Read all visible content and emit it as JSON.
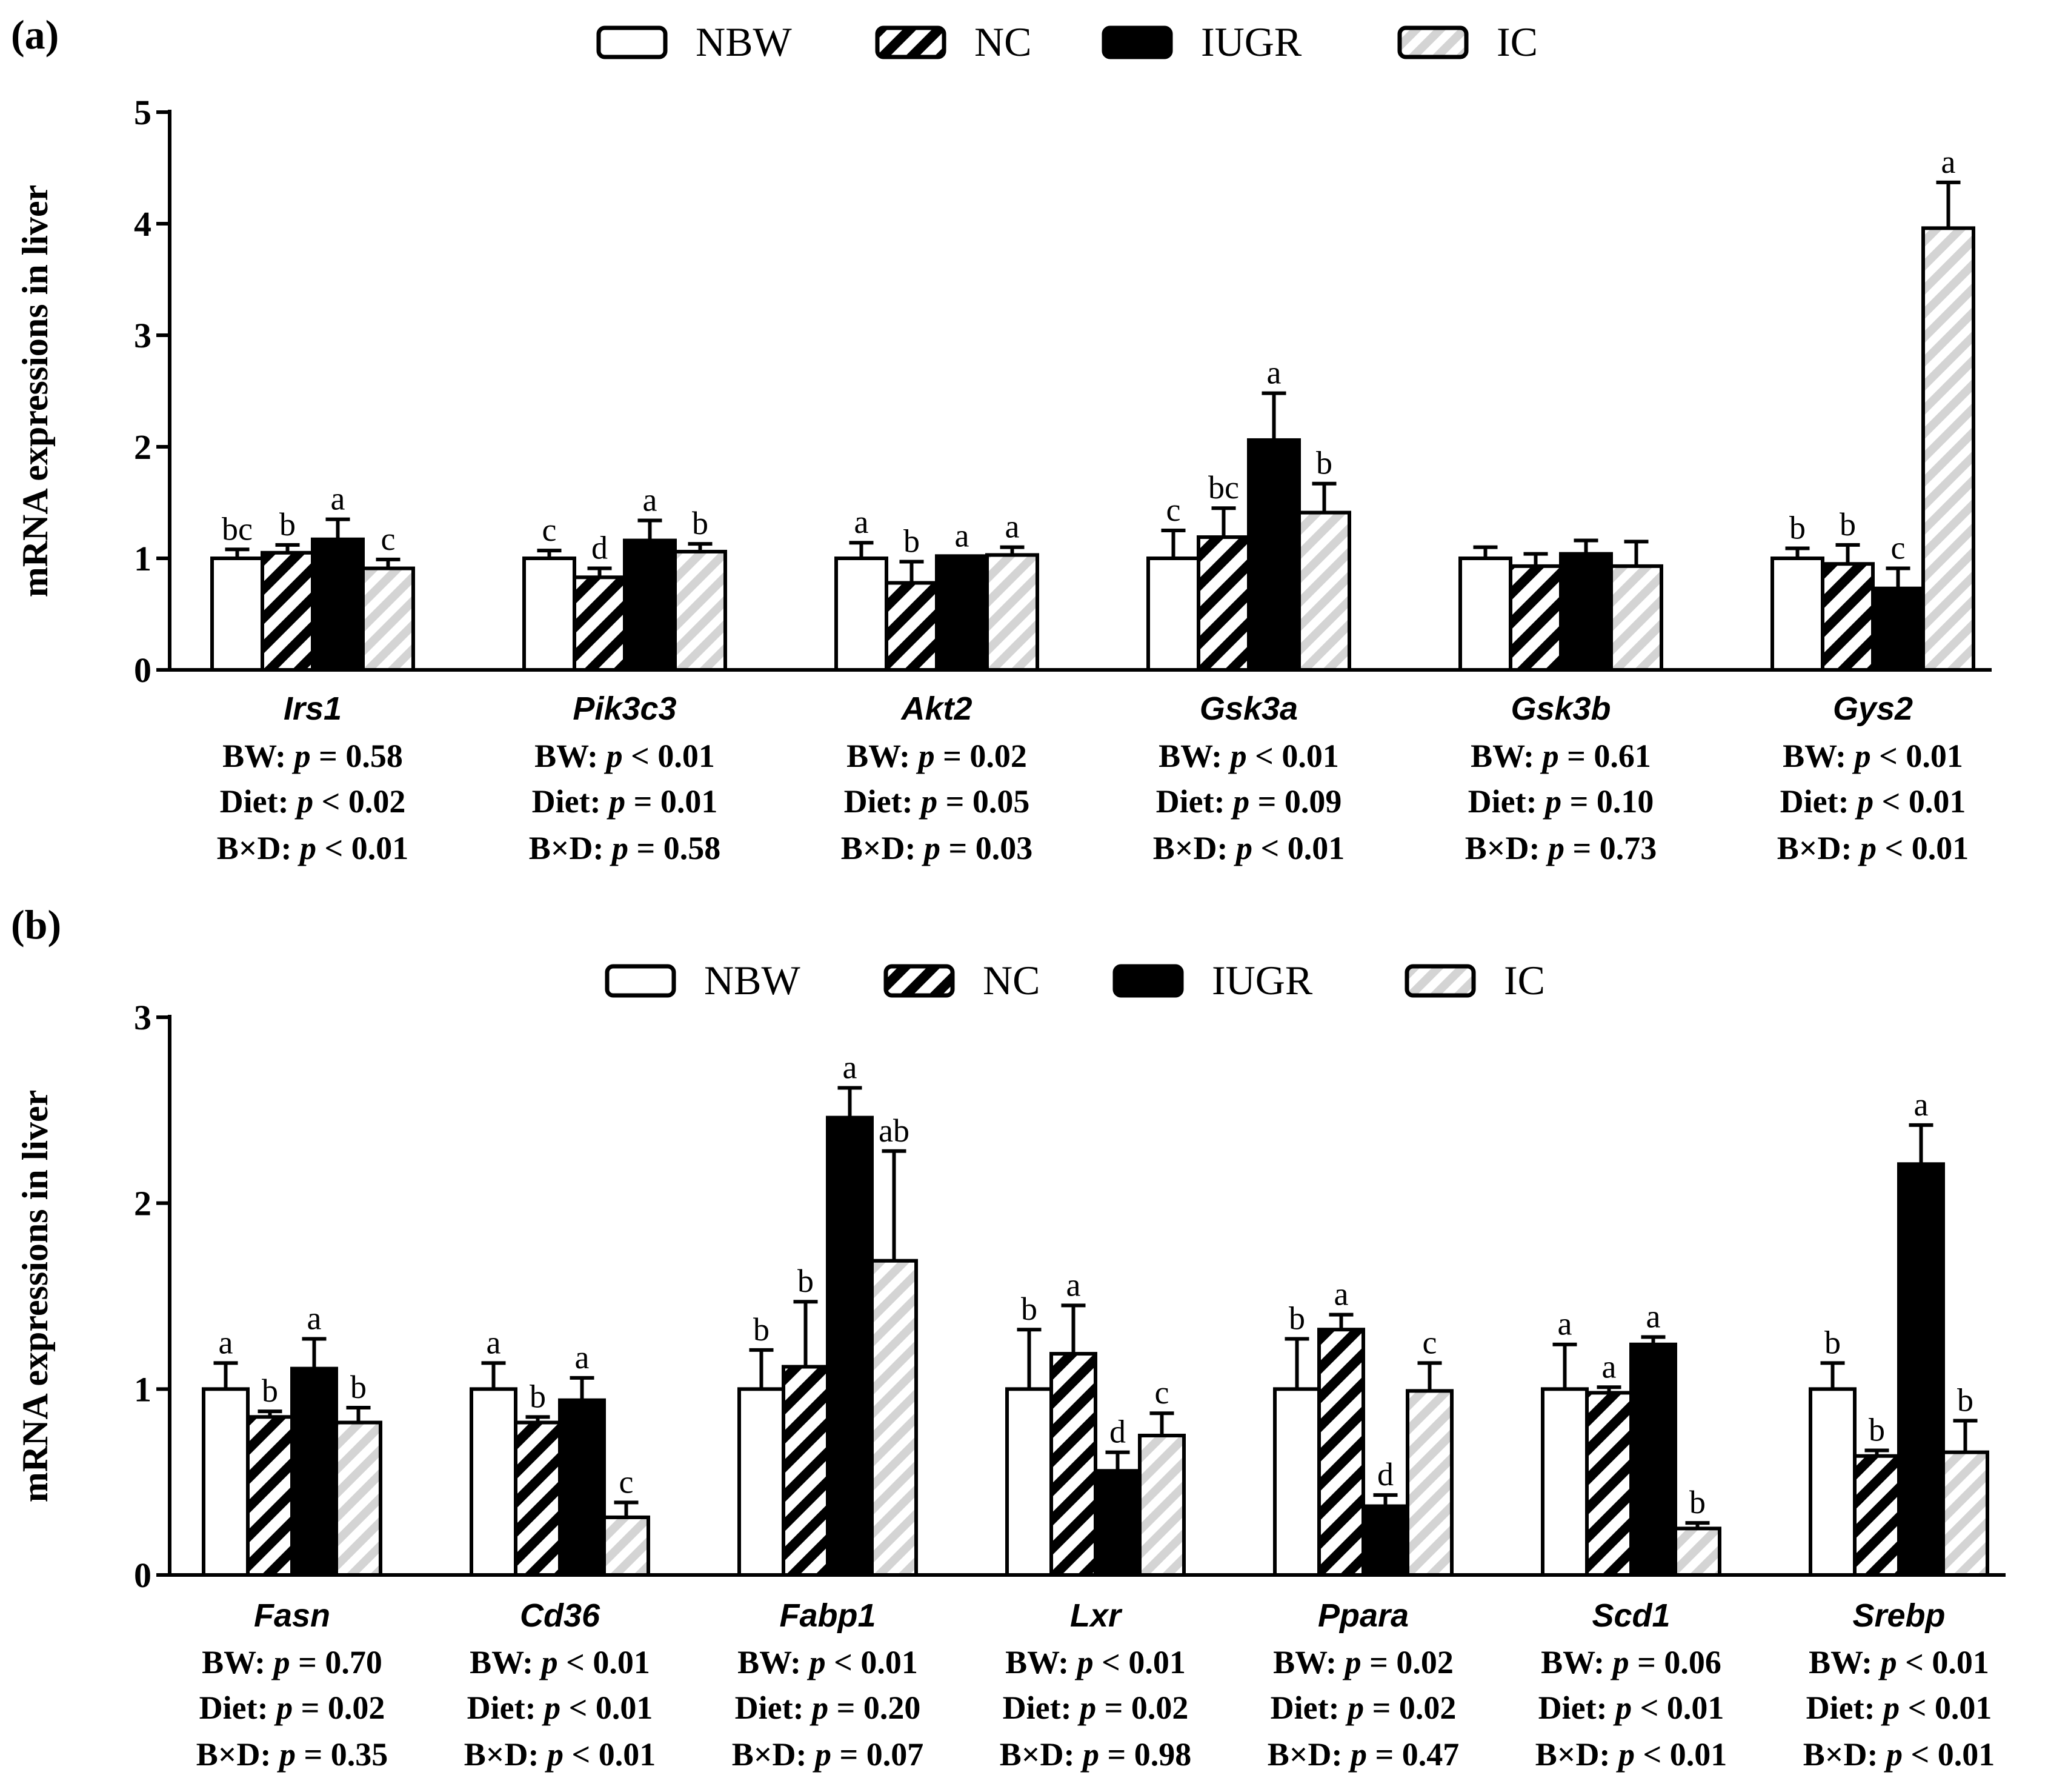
{
  "group_colors": {
    "NBW": "#ffffff",
    "NC": "#000000",
    "IUGR": "#000000",
    "IC": "#d9d9d9"
  },
  "chart_data": [
    {
      "type": "bar",
      "panel": "(a)",
      "ylabel": "mRNA expressions in liver",
      "ylim": [
        0,
        5
      ],
      "yticks": [
        "0",
        "1",
        "2",
        "3",
        "4",
        "5"
      ],
      "legend": [
        {
          "name": "NBW",
          "pattern": "white"
        },
        {
          "name": "NC",
          "pattern": "black-hatch"
        },
        {
          "name": "IUGR",
          "pattern": "black"
        },
        {
          "name": "IC",
          "pattern": "gray-hatch"
        }
      ],
      "genes": [
        {
          "name": "Irs1",
          "values": [
            1.0,
            1.05,
            1.17,
            0.91
          ],
          "errors": [
            0.08,
            0.07,
            0.18,
            0.08
          ],
          "letters": [
            "bc",
            "b",
            "a",
            "c"
          ],
          "stats": [
            "BW: p = 0.58",
            "Diet: p < 0.02",
            "B×D: p < 0.01"
          ]
        },
        {
          "name": "Pik3c3",
          "values": [
            1.0,
            0.83,
            1.16,
            1.06
          ],
          "errors": [
            0.07,
            0.08,
            0.18,
            0.07
          ],
          "letters": [
            "c",
            "d",
            "a",
            "b"
          ],
          "stats": [
            "BW: p < 0.01",
            "Diet: p = 0.01",
            "B×D: p = 0.58"
          ]
        },
        {
          "name": "Akt2",
          "values": [
            1.0,
            0.78,
            1.02,
            1.03
          ],
          "errors": [
            0.14,
            0.19,
            0.0,
            0.07
          ],
          "letters": [
            "a",
            "b",
            "a",
            "a"
          ],
          "stats": [
            "BW: p = 0.02",
            "Diet: p = 0.05",
            "B×D: p = 0.03"
          ]
        },
        {
          "name": "Gsk3a",
          "values": [
            1.0,
            1.19,
            2.06,
            1.41
          ],
          "errors": [
            0.25,
            0.26,
            0.42,
            0.26
          ],
          "letters": [
            "c",
            "bc",
            "a",
            "b"
          ],
          "stats": [
            "BW: p < 0.01",
            "Diet: p = 0.09",
            "B×D: p < 0.01"
          ]
        },
        {
          "name": "Gsk3b",
          "values": [
            1.0,
            0.93,
            1.04,
            0.93
          ],
          "errors": [
            0.1,
            0.11,
            0.12,
            0.22
          ],
          "letters": [
            "",
            "",
            "",
            ""
          ],
          "stats": [
            "BW: p = 0.61",
            "Diet: p = 0.10",
            "B×D: p = 0.73"
          ]
        },
        {
          "name": "Gys2",
          "values": [
            1.0,
            0.95,
            0.73,
            3.96
          ],
          "errors": [
            0.09,
            0.17,
            0.18,
            0.41
          ],
          "letters": [
            "b",
            "b",
            "c",
            "a"
          ],
          "stats": [
            "BW: p < 0.01",
            "Diet: p < 0.01",
            "B×D: p < 0.01"
          ]
        }
      ]
    },
    {
      "type": "bar",
      "panel": "(b)",
      "ylabel": "mRNA expressions in liver",
      "ylim": [
        0,
        3
      ],
      "yticks": [
        "0",
        "1",
        "2",
        "3"
      ],
      "legend": [
        {
          "name": "NBW",
          "pattern": "white"
        },
        {
          "name": "NC",
          "pattern": "black-hatch"
        },
        {
          "name": "IUGR",
          "pattern": "black"
        },
        {
          "name": "IC",
          "pattern": "gray-hatch"
        }
      ],
      "genes": [
        {
          "name": "Fasn",
          "values": [
            1.0,
            0.85,
            1.11,
            0.82
          ],
          "errors": [
            0.14,
            0.03,
            0.16,
            0.08
          ],
          "letters": [
            "a",
            "b",
            "a",
            "b"
          ],
          "stats": [
            "BW: p = 0.70",
            "Diet: p = 0.02",
            "B×D: p = 0.35"
          ]
        },
        {
          "name": "Cd36",
          "values": [
            1.0,
            0.82,
            0.94,
            0.31
          ],
          "errors": [
            0.14,
            0.03,
            0.12,
            0.08
          ],
          "letters": [
            "a",
            "b",
            "a",
            "c"
          ],
          "stats": [
            "BW: p < 0.01",
            "Diet: p < 0.01",
            "B×D: p < 0.01"
          ]
        },
        {
          "name": "Fabp1",
          "values": [
            1.0,
            1.12,
            2.46,
            1.69
          ],
          "errors": [
            0.21,
            0.35,
            0.16,
            0.59
          ],
          "letters": [
            "b",
            "b",
            "a",
            "ab"
          ],
          "stats": [
            "BW: p < 0.01",
            "Diet: p = 0.20",
            "B×D: p = 0.07"
          ]
        },
        {
          "name": "Lxr",
          "values": [
            1.0,
            1.19,
            0.56,
            0.75
          ],
          "errors": [
            0.32,
            0.26,
            0.1,
            0.12
          ],
          "letters": [
            "b",
            "a",
            "d",
            "c"
          ],
          "stats": [
            "BW: p < 0.01",
            "Diet: p = 0.02",
            "B×D: p = 0.98"
          ]
        },
        {
          "name": "Ppara",
          "values": [
            1.0,
            1.32,
            0.37,
            0.99
          ],
          "errors": [
            0.27,
            0.08,
            0.06,
            0.15
          ],
          "letters": [
            "b",
            "a",
            "d",
            "c"
          ],
          "stats": [
            "BW: p = 0.02",
            "Diet: p = 0.02",
            "B×D: p = 0.47"
          ]
        },
        {
          "name": "Scd1",
          "values": [
            1.0,
            0.98,
            1.24,
            0.25
          ],
          "errors": [
            0.24,
            0.03,
            0.04,
            0.03
          ],
          "letters": [
            "a",
            "a",
            "a",
            "b"
          ],
          "stats": [
            "BW: p = 0.06",
            "Diet: p < 0.01",
            "B×D: p < 0.01"
          ]
        },
        {
          "name": "Srebp",
          "values": [
            1.0,
            0.64,
            2.21,
            0.66
          ],
          "errors": [
            0.14,
            0.03,
            0.21,
            0.17
          ],
          "letters": [
            "b",
            "b",
            "a",
            "b"
          ],
          "stats": [
            "BW: p < 0.01",
            "Diet: p < 0.01",
            "B×D: p < 0.01"
          ]
        }
      ]
    }
  ]
}
